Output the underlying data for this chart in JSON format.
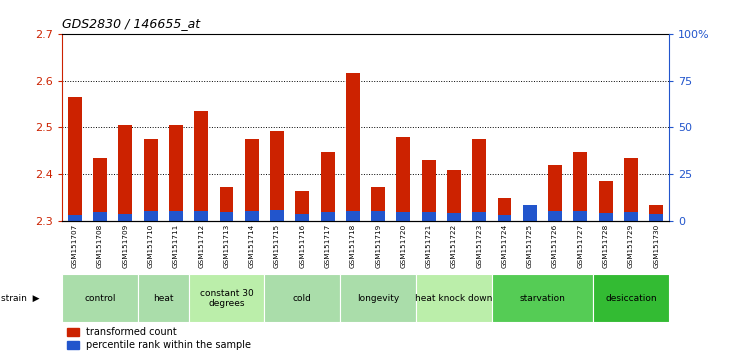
{
  "title": "GDS2830 / 146655_at",
  "samples": [
    "GSM151707",
    "GSM151708",
    "GSM151709",
    "GSM151710",
    "GSM151711",
    "GSM151712",
    "GSM151713",
    "GSM151714",
    "GSM151715",
    "GSM151716",
    "GSM151717",
    "GSM151718",
    "GSM151719",
    "GSM151720",
    "GSM151721",
    "GSM151722",
    "GSM151723",
    "GSM151724",
    "GSM151725",
    "GSM151726",
    "GSM151727",
    "GSM151728",
    "GSM151729",
    "GSM151730"
  ],
  "red_values": [
    2.565,
    2.435,
    2.505,
    2.475,
    2.505,
    2.535,
    2.372,
    2.475,
    2.493,
    2.365,
    2.448,
    2.615,
    2.372,
    2.48,
    2.43,
    2.41,
    2.475,
    2.35,
    2.327,
    2.42,
    2.448,
    2.385,
    2.435,
    2.335
  ],
  "blue_values": [
    3.5,
    5.0,
    4.0,
    5.5,
    5.5,
    5.5,
    5.0,
    5.5,
    6.0,
    4.0,
    5.0,
    5.5,
    5.5,
    5.0,
    5.0,
    4.5,
    5.0,
    3.5,
    8.5,
    5.5,
    5.5,
    4.5,
    5.0,
    4.0
  ],
  "y_min": 2.3,
  "y_max": 2.7,
  "y_ticks": [
    2.3,
    2.4,
    2.5,
    2.6,
    2.7
  ],
  "y2_ticks": [
    0,
    25,
    50,
    75,
    100
  ],
  "y2_labels": [
    "0",
    "25",
    "50",
    "75",
    "100%"
  ],
  "bar_color_red": "#cc2200",
  "bar_color_blue": "#2255cc",
  "group_data": [
    {
      "label": "control",
      "indices": [
        0,
        1,
        2
      ],
      "color": "#aaddaa"
    },
    {
      "label": "heat",
      "indices": [
        3,
        4
      ],
      "color": "#aaddaa"
    },
    {
      "label": "constant 30\ndegrees",
      "indices": [
        5,
        6,
        7
      ],
      "color": "#bbeeaa"
    },
    {
      "label": "cold",
      "indices": [
        8,
        9,
        10
      ],
      "color": "#aaddaa"
    },
    {
      "label": "longevity",
      "indices": [
        11,
        12,
        13
      ],
      "color": "#aaddaa"
    },
    {
      "label": "heat knock down",
      "indices": [
        14,
        15,
        16
      ],
      "color": "#bbeeaa"
    },
    {
      "label": "starvation",
      "indices": [
        17,
        18,
        19,
        20
      ],
      "color": "#55cc55"
    },
    {
      "label": "desiccation",
      "indices": [
        21,
        22,
        23
      ],
      "color": "#33bb33"
    }
  ],
  "legend_red": "transformed count",
  "legend_blue": "percentile rank within the sample",
  "bg_color": "#ffffff",
  "tick_color_left": "#cc2200",
  "tick_color_right": "#2255cc"
}
